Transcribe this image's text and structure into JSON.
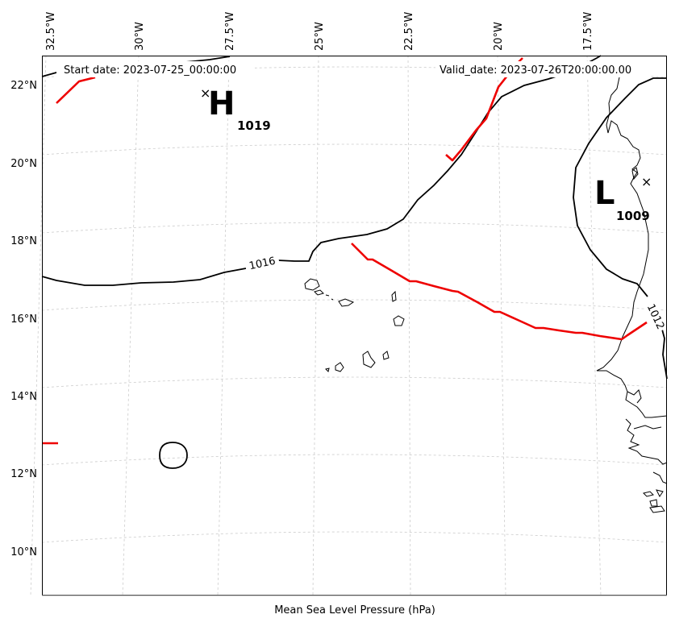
{
  "map": {
    "start_label": "Start date: 2023-07-25_00:00:00",
    "valid_label": "Valid_date: 2023-07-26T20:00:00.00",
    "caption": "Mean Sea Level Pressure (hPa)",
    "lon_labels": [
      "32.5°W",
      "30°W",
      "27.5°W",
      "25°W",
      "22.5°W",
      "20°W",
      "17.5°W"
    ],
    "lat_labels": [
      "22°N",
      "20°N",
      "18°N",
      "16°N",
      "14°N",
      "12°N",
      "10°N"
    ],
    "high": {
      "letter": "H",
      "value": "1019"
    },
    "low": {
      "letter": "L",
      "value": "1009"
    },
    "contour_labels": [
      "1016",
      "1012"
    ],
    "colors": {
      "isobar": "#000000",
      "front": "#ee0000",
      "grid": "#cccccc",
      "frame": "#000000"
    }
  }
}
